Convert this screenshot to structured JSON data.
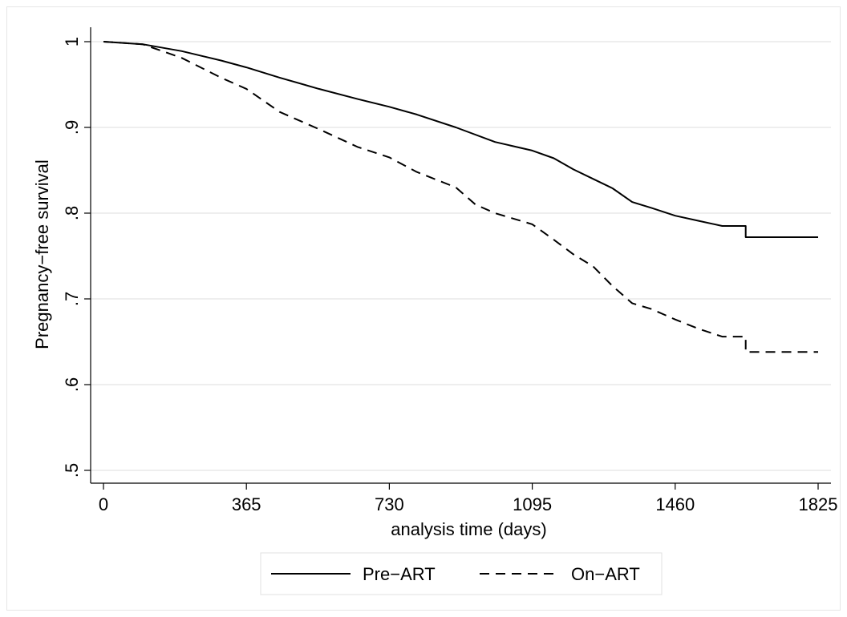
{
  "chart_data": {
    "type": "line",
    "xlabel": "analysis time (days)",
    "ylabel": "Pregnancy−free survival",
    "xlim": [
      0,
      1825
    ],
    "ylim": [
      0.5,
      1.0
    ],
    "x_ticks": [
      0,
      365,
      730,
      1095,
      1460,
      1825
    ],
    "x_tick_labels": [
      "0",
      "365",
      "730",
      "1095",
      "1460",
      "1825"
    ],
    "y_ticks": [
      0.5,
      0.6,
      0.7,
      0.8,
      0.9,
      1.0
    ],
    "y_tick_labels": [
      ".5",
      ".6",
      ".7",
      ".8",
      ".9",
      "1"
    ],
    "grid": "horizontal",
    "legend_position": "bottom",
    "series": [
      {
        "name": "Pre−ART",
        "line_style": "solid",
        "color": "#000000",
        "points": [
          [
            0,
            1.0
          ],
          [
            100,
            0.997
          ],
          [
            200,
            0.989
          ],
          [
            300,
            0.978
          ],
          [
            365,
            0.97
          ],
          [
            450,
            0.958
          ],
          [
            550,
            0.945
          ],
          [
            650,
            0.933
          ],
          [
            730,
            0.924
          ],
          [
            800,
            0.915
          ],
          [
            900,
            0.9
          ],
          [
            1000,
            0.883
          ],
          [
            1095,
            0.873
          ],
          [
            1150,
            0.864
          ],
          [
            1200,
            0.851
          ],
          [
            1250,
            0.84
          ],
          [
            1300,
            0.829
          ],
          [
            1350,
            0.813
          ],
          [
            1400,
            0.806
          ],
          [
            1460,
            0.797
          ],
          [
            1520,
            0.791
          ],
          [
            1580,
            0.785
          ],
          [
            1640,
            0.785
          ],
          [
            1640,
            0.772
          ],
          [
            1825,
            0.772
          ]
        ]
      },
      {
        "name": "On−ART",
        "line_style": "dashed",
        "color": "#000000",
        "points": [
          [
            0,
            1.0
          ],
          [
            100,
            0.997
          ],
          [
            200,
            0.981
          ],
          [
            300,
            0.958
          ],
          [
            365,
            0.945
          ],
          [
            450,
            0.918
          ],
          [
            550,
            0.898
          ],
          [
            650,
            0.877
          ],
          [
            730,
            0.865
          ],
          [
            800,
            0.848
          ],
          [
            900,
            0.83
          ],
          [
            950,
            0.81
          ],
          [
            1000,
            0.8
          ],
          [
            1095,
            0.787
          ],
          [
            1150,
            0.769
          ],
          [
            1200,
            0.752
          ],
          [
            1250,
            0.738
          ],
          [
            1300,
            0.715
          ],
          [
            1350,
            0.695
          ],
          [
            1400,
            0.688
          ],
          [
            1460,
            0.676
          ],
          [
            1520,
            0.665
          ],
          [
            1580,
            0.656
          ],
          [
            1640,
            0.656
          ],
          [
            1640,
            0.638
          ],
          [
            1825,
            0.638
          ]
        ]
      }
    ]
  }
}
